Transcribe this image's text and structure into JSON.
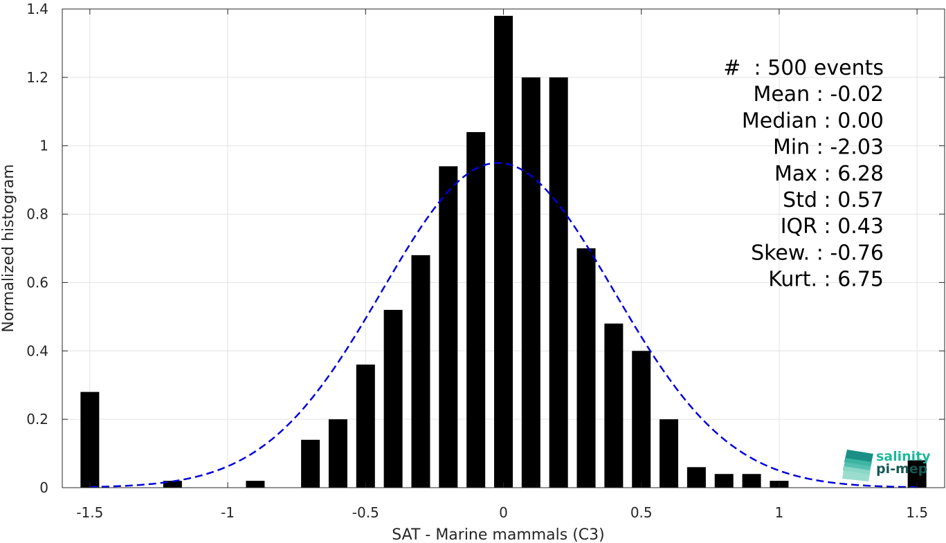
{
  "chart_data": {
    "type": "bar",
    "xlabel": "SAT - Marine mammals (C3)",
    "ylabel": "Normalized histogram",
    "xlim": [
      -1.6,
      1.6
    ],
    "ylim": [
      0,
      1.4
    ],
    "xticks": [
      -1.5,
      -1,
      -0.5,
      0,
      0.5,
      1,
      1.5
    ],
    "xtick_labels": [
      "-1.5",
      "-1",
      "-0.5",
      "0",
      "0.5",
      "1",
      "1.5"
    ],
    "yticks": [
      0,
      0.2,
      0.4,
      0.6,
      0.8,
      1,
      1.2,
      1.4
    ],
    "ytick_labels": [
      "0",
      "0.2",
      "0.4",
      "0.6",
      "0.8",
      "1",
      "1.2",
      "1.4"
    ],
    "grid": true,
    "bar_color": "#000000",
    "fit_color": "#0000dd",
    "bars": {
      "x": [
        -1.5,
        -1.2,
        -0.9,
        -0.7,
        -0.6,
        -0.5,
        -0.4,
        -0.3,
        -0.2,
        -0.1,
        0.0,
        0.1,
        0.2,
        0.3,
        0.4,
        0.5,
        0.6,
        0.7,
        0.8,
        0.9,
        1.0,
        1.5
      ],
      "values": [
        0.28,
        0.02,
        0.02,
        0.14,
        0.2,
        0.36,
        0.52,
        0.68,
        0.94,
        1.04,
        1.38,
        1.2,
        1.2,
        0.7,
        0.48,
        0.4,
        0.2,
        0.06,
        0.04,
        0.04,
        0.02,
        0.08
      ]
    },
    "fit_curve": {
      "style": "dashed",
      "distribution": "normal",
      "mean": -0.02,
      "std": 0.42,
      "peak": 0.95,
      "x_range": [
        -1.5,
        1.5
      ]
    }
  },
  "stats": [
    "#  : 500 events",
    "Mean : -0.02",
    "Median : 0.00",
    "Min : -2.03",
    "Max : 6.28",
    "Std : 0.57",
    "IQR : 0.43",
    "Skew. : -0.76",
    "Kurt. : 6.75"
  ],
  "logo": {
    "line1": "salinity",
    "line2": "pi-mep",
    "color1": "#1fb89a",
    "color2": "#155a55"
  }
}
